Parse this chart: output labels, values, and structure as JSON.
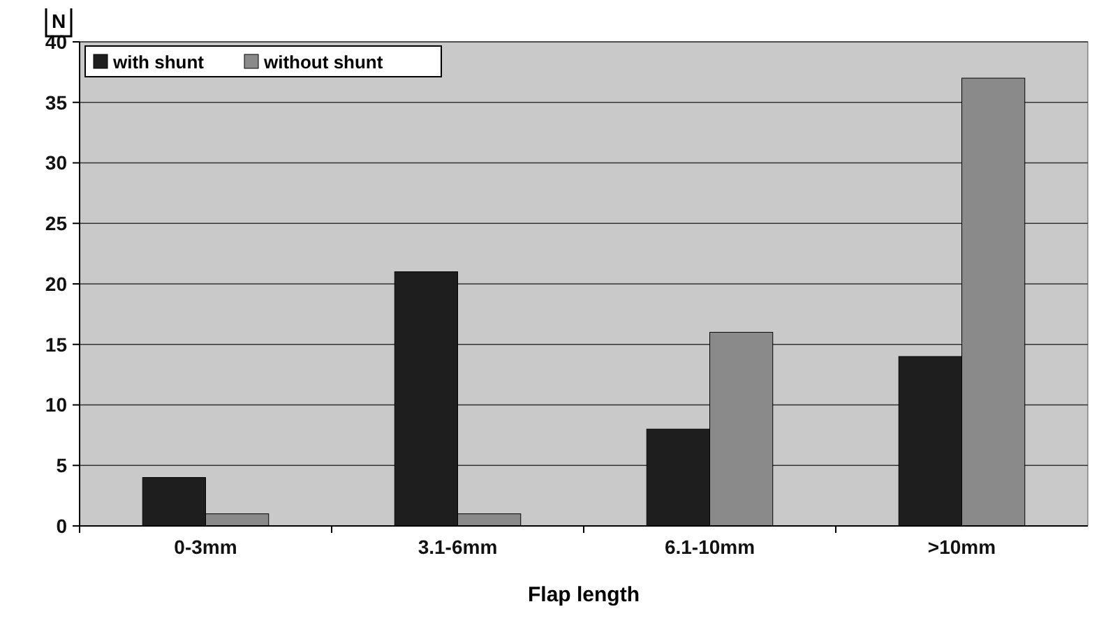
{
  "chart_data": {
    "type": "bar",
    "ylabel": "N",
    "xlabel": "Flap length",
    "categories": [
      "0-3mm",
      "3.1-6mm",
      "6.1-10mm",
      ">10mm"
    ],
    "series": [
      {
        "name": "with shunt",
        "color": "#1e1e1e",
        "values": [
          4,
          21,
          8,
          14
        ]
      },
      {
        "name": "without shunt",
        "color": "#8a8a8a",
        "values": [
          1,
          1,
          16,
          37
        ]
      }
    ],
    "ylim": [
      0,
      40
    ],
    "yticks": [
      0,
      5,
      10,
      15,
      20,
      25,
      30,
      35,
      40
    ],
    "grid": "y",
    "legend": "top left"
  }
}
